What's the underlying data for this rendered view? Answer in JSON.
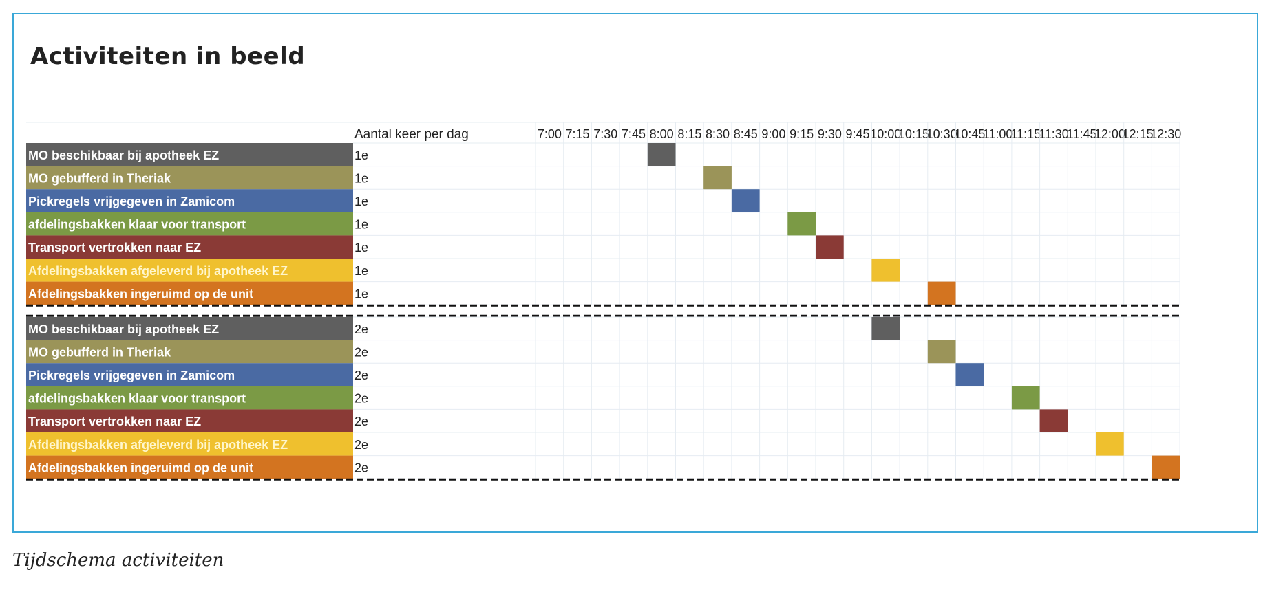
{
  "panel_title": "Activiteiten in beeld",
  "caption": "Tijdschema activiteiten",
  "colors": {
    "frame": "#3aa8d8",
    "mo_beschikbaar": "#5f5f5f",
    "mo_gebufferd": "#9b9459",
    "pickregels": "#4a6aa3",
    "afdelingsbakken_klaar": "#7b9a45",
    "transport": "#8a3a36",
    "afgeleverd": "#efc02e",
    "ingeruimd": "#d37420"
  },
  "chart_data": {
    "type": "table",
    "count_column_header": "Aantal keer per dag",
    "time_slots": [
      "7:00",
      "7:15",
      "7:30",
      "7:45",
      "8:00",
      "8:15",
      "8:30",
      "8:45",
      "9:00",
      "9:15",
      "9:30",
      "9:45",
      "10:00",
      "10:15",
      "10:30",
      "10:45",
      "11:00",
      "11:15",
      "11:30",
      "11:45",
      "12:00",
      "12:15",
      "12:30"
    ],
    "groups": [
      {
        "count": "1e",
        "rows": [
          {
            "activity": "MO beschikbaar bij apotheek EZ",
            "color": "#5f5f5f",
            "label_color": "#ffffff",
            "start": "8:00",
            "end": "8:15"
          },
          {
            "activity": "MO gebufferd in Theriak",
            "color": "#9b9459",
            "label_color": "#ffffff",
            "start": "8:30",
            "end": "8:45"
          },
          {
            "activity": "Pickregels vrijgegeven in Zamicom",
            "color": "#4a6aa3",
            "label_color": "#ffffff",
            "start": "8:45",
            "end": "9:00"
          },
          {
            "activity": "afdelingsbakken klaar voor transport",
            "color": "#7b9a45",
            "label_color": "#ffffff",
            "start": "9:15",
            "end": "9:30"
          },
          {
            "activity": "Transport vertrokken naar EZ",
            "color": "#8a3a36",
            "label_color": "#ffffff",
            "start": "9:30",
            "end": "9:45"
          },
          {
            "activity": "Afdelingsbakken afgeleverd bij apotheek EZ",
            "color": "#efc02e",
            "label_color": "#fff6cc",
            "start": "10:00",
            "end": "10:15"
          },
          {
            "activity": "Afdelingsbakken ingeruimd op de  unit",
            "color": "#d37420",
            "label_color": "#ffffff",
            "start": "10:30",
            "end": "10:45"
          }
        ]
      },
      {
        "count": "2e",
        "rows": [
          {
            "activity": "MO beschikbaar bij apotheek EZ",
            "color": "#5f5f5f",
            "label_color": "#ffffff",
            "start": "10:00",
            "end": "10:15"
          },
          {
            "activity": "MO gebufferd in Theriak",
            "color": "#9b9459",
            "label_color": "#ffffff",
            "start": "10:30",
            "end": "10:45"
          },
          {
            "activity": "Pickregels vrijgegeven in Zamicom",
            "color": "#4a6aa3",
            "label_color": "#ffffff",
            "start": "10:45",
            "end": "11:00"
          },
          {
            "activity": "afdelingsbakken klaar voor transport",
            "color": "#7b9a45",
            "label_color": "#ffffff",
            "start": "11:15",
            "end": "11:30"
          },
          {
            "activity": "Transport vertrokken naar EZ",
            "color": "#8a3a36",
            "label_color": "#ffffff",
            "start": "11:30",
            "end": "11:45"
          },
          {
            "activity": "Afdelingsbakken afgeleverd bij apotheek EZ",
            "color": "#efc02e",
            "label_color": "#fff6cc",
            "start": "12:00",
            "end": "12:15"
          },
          {
            "activity": "Afdelingsbakken ingeruimd op de  unit",
            "color": "#d37420",
            "label_color": "#ffffff",
            "start": "12:30",
            "end": "12:45"
          }
        ]
      }
    ]
  }
}
